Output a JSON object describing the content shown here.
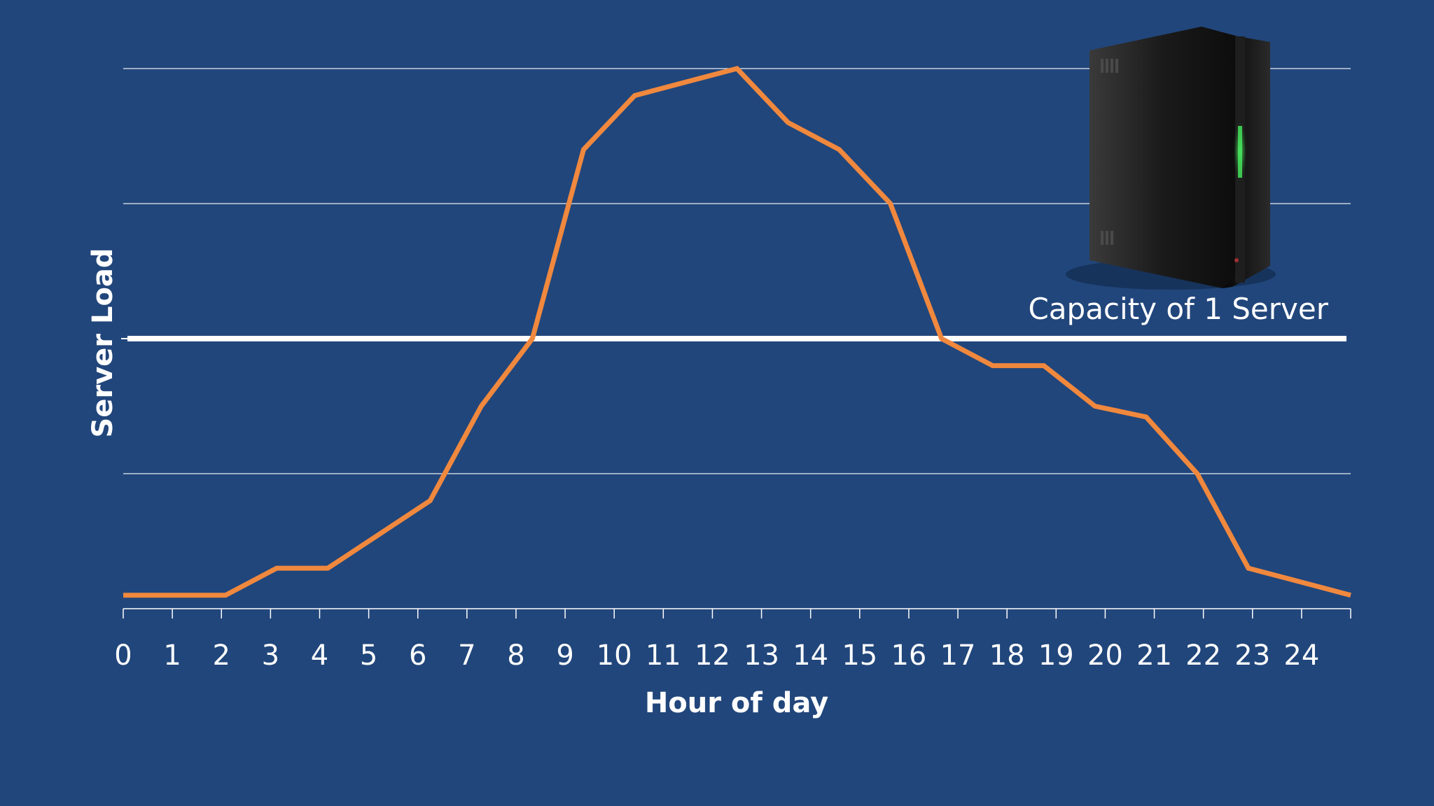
{
  "chart_data": {
    "type": "line",
    "xlabel": "Hour of day",
    "ylabel": "Server Load",
    "x": [
      0,
      1,
      2,
      3,
      4,
      5,
      6,
      7,
      8,
      9,
      10,
      11,
      12,
      13,
      14,
      15,
      16,
      17,
      18,
      19,
      20,
      21,
      22,
      23,
      24
    ],
    "xlim": [
      0,
      24
    ],
    "ylim": [
      0,
      4
    ],
    "grid": true,
    "series": [
      {
        "values": [
          0.1,
          0.1,
          0.1,
          0.3,
          0.3,
          0.55,
          0.8,
          1.5,
          2.0,
          3.4,
          3.8,
          3.9,
          4.0,
          3.6,
          3.4,
          3.0,
          2.0,
          1.8,
          1.8,
          1.5,
          1.42,
          1.0,
          0.3,
          0.2,
          0.1
        ],
        "color": "#f0883e"
      }
    ],
    "capacity_line": {
      "value": 2.0,
      "label": "Capacity of 1 Server",
      "color": "#ffffff"
    }
  },
  "decoration": {
    "server_icon": "server-tower-icon"
  },
  "colors": {
    "background": "#21467b",
    "line": "#f0883e",
    "grid": "#ffffff"
  }
}
